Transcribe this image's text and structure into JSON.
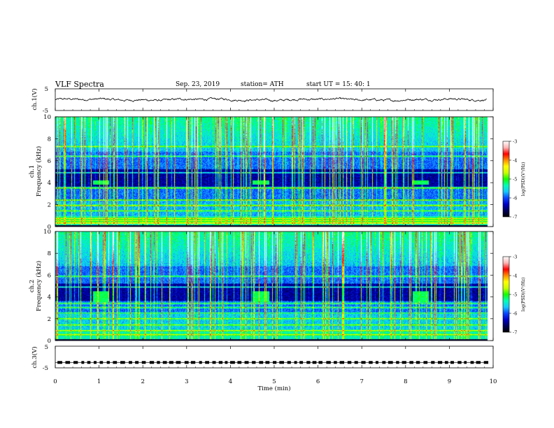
{
  "header": {
    "title": "VLF  Spectra",
    "date": "Sep. 23, 2019",
    "station": "station= ATH",
    "start_ut": "start  UT  =    15: 40: 1"
  },
  "chart_data": [
    {
      "type": "line",
      "name": "ch1-voltage",
      "ylabel": "ch.1(V)",
      "ylim": [
        -5,
        5
      ],
      "yticks": [
        "5",
        "-5"
      ],
      "x_range_min": [
        0,
        9.85
      ],
      "description_level": 0
    },
    {
      "type": "heatmap",
      "name": "ch1-spectrogram",
      "ylabel": "Frequency  (kHz)",
      "ylabel_prefix": "ch.1",
      "ylim": [
        0,
        10
      ],
      "yticks": [
        "0",
        "2",
        "4",
        "6",
        "8",
        "10"
      ],
      "colorbar": {
        "label": "log(PSD)(V²/Hz)",
        "ticks": [
          "-3",
          "-4",
          "-5",
          "-6",
          "-7"
        ],
        "range": [
          -7,
          -3
        ]
      },
      "features_khz": {
        "narrowband_lines": [
          0.3,
          0.5,
          0.7,
          1.4,
          1.9,
          2.4,
          3.5,
          4.9,
          6.4,
          7.3
        ],
        "patch_band": [
          3.8,
          4.2
        ],
        "patch_times_min": [
          0.85,
          4.5,
          8.15
        ]
      }
    },
    {
      "type": "heatmap",
      "name": "ch2-spectrogram",
      "ylabel": "Frequency  (kHz)",
      "ylabel_prefix": "ch.2",
      "ylim": [
        0,
        10
      ],
      "yticks": [
        "0",
        "2",
        "4",
        "6",
        "8",
        "10"
      ],
      "colorbar": {
        "label": "log(PSD)(V²/Hz)",
        "ticks": [
          "-3",
          "-4",
          "-5",
          "-6",
          "-7"
        ],
        "range": [
          -7,
          -3
        ]
      },
      "features_khz": {
        "narrowband_lines": [
          0.5,
          0.9,
          1.4,
          2.0,
          2.5,
          3.0,
          3.4,
          4.9,
          5.9
        ],
        "patch_band": [
          3.5,
          4.5
        ],
        "patch_times_min": [
          0.85,
          4.5,
          8.15
        ]
      }
    },
    {
      "type": "line",
      "name": "ch3-voltage",
      "ylabel": "ch.3(V)",
      "ylim": [
        -5,
        5
      ],
      "yticks": [
        "5",
        "-5"
      ],
      "level": -2.5
    }
  ],
  "xaxis": {
    "label": "Time  (min)",
    "ticks": [
      "0",
      "1",
      "2",
      "3",
      "4",
      "5",
      "6",
      "7",
      "8",
      "9",
      "10"
    ],
    "xlim": [
      0,
      10
    ],
    "data_end_min": 9.85
  },
  "colors": {
    "frame": "#000000",
    "background": "#ffffff",
    "colormap": [
      "#000000",
      "#00005a",
      "#0000c8",
      "#0a46ff",
      "#14c8ff",
      "#00ffb4",
      "#14ff00",
      "#c8ff00",
      "#ffff00",
      "#ff8c00",
      "#ff0000",
      "#ffb4b4",
      "#ffffff"
    ]
  }
}
